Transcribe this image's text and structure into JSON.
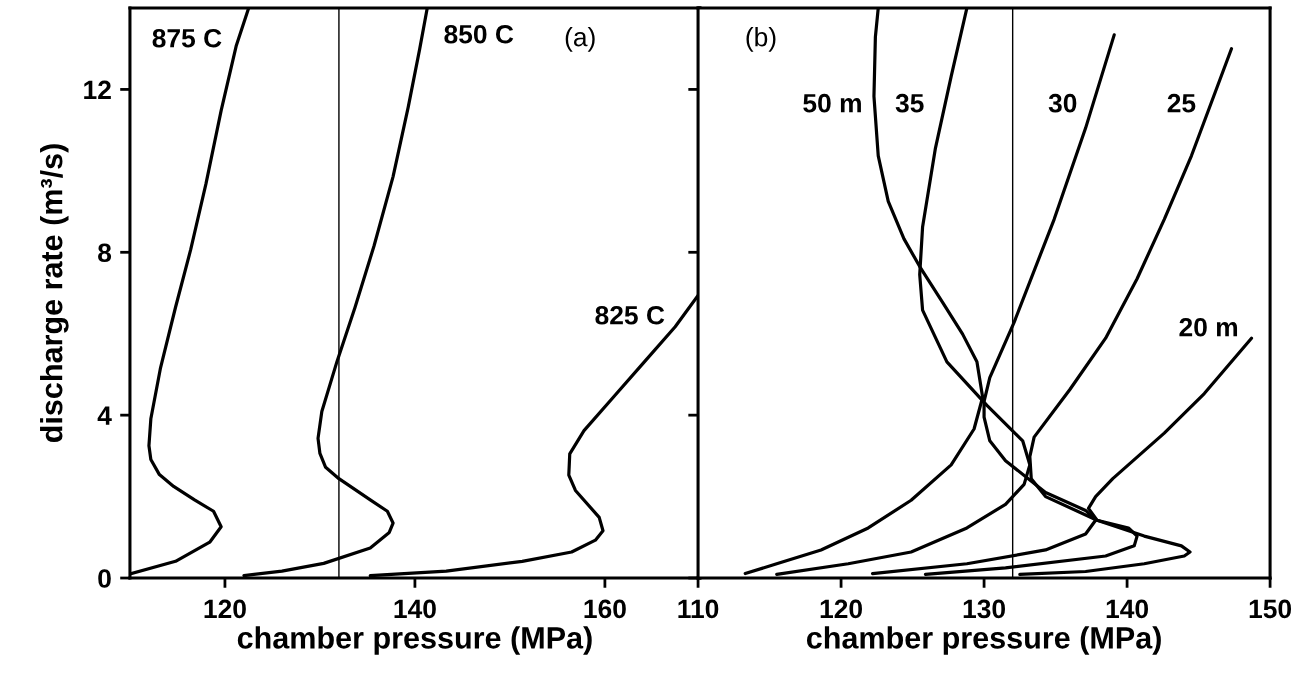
{
  "chart_data": [
    {
      "type": "line",
      "xlabel": "chamber pressure (MPa)",
      "ylabel": "discharge rate (m³/s)",
      "xlim": [
        110,
        170
      ],
      "xticks": [
        120,
        140,
        160
      ],
      "ylim": [
        0,
        14
      ],
      "yticks": [
        0,
        4,
        8,
        12
      ],
      "grid": false,
      "series": [
        {
          "name": "875 C",
          "color": "#000000",
          "x": [
            110.0,
            114.8,
            118.4,
            119.6,
            118.8,
            116.8,
            114.6,
            113.1,
            112.2,
            112.0,
            112.2,
            113.2,
            114.8,
            116.4,
            118.0,
            119.6,
            121.2,
            122.5
          ],
          "values": [
            0.1,
            0.41,
            0.88,
            1.26,
            1.64,
            1.92,
            2.25,
            2.54,
            2.91,
            3.25,
            3.91,
            5.14,
            6.65,
            8.07,
            9.68,
            11.48,
            13.08,
            14.0
          ]
        },
        {
          "name": "850 C",
          "color": "#000000",
          "x": [
            122.0,
            126.0,
            130.4,
            135.3,
            137.3,
            137.7,
            137.1,
            135.3,
            132.0,
            130.6,
            130.0,
            129.8,
            130.2,
            131.8,
            133.7,
            135.7,
            137.7,
            139.3,
            140.5,
            141.3
          ],
          "values": [
            0.06,
            0.17,
            0.36,
            0.74,
            1.12,
            1.35,
            1.64,
            1.92,
            2.44,
            2.72,
            3.06,
            3.43,
            4.09,
            5.32,
            6.65,
            8.16,
            9.86,
            11.57,
            12.99,
            14.0
          ]
        },
        {
          "name": "825 C",
          "color": "#000000",
          "x": [
            135.3,
            143.3,
            151.3,
            156.5,
            159.0,
            159.8,
            159.4,
            156.9,
            156.2,
            156.3,
            157.8,
            161.0,
            164.2,
            167.4,
            170.0
          ],
          "values": [
            0.06,
            0.17,
            0.41,
            0.64,
            0.93,
            1.16,
            1.49,
            2.15,
            2.53,
            3.05,
            3.62,
            4.47,
            5.32,
            6.17,
            7.0
          ]
        }
      ],
      "ref_lines": [
        {
          "axis": "x",
          "value": 132,
          "color": "#000000"
        }
      ],
      "annotations": [
        "(a)"
      ]
    },
    {
      "type": "line",
      "xlabel": "chamber pressure (MPa)",
      "xlim": [
        110,
        150
      ],
      "xticks": [
        110,
        120,
        130,
        140,
        150
      ],
      "ylim": [
        0,
        14
      ],
      "yticks": [
        0,
        4,
        8,
        12
      ],
      "tick_labels": "x",
      "grid": false,
      "series": [
        {
          "name": "50 m",
          "color": "#000000",
          "x": [
            113.3,
            115.5,
            118.6,
            121.9,
            124.9,
            127.7,
            129.3,
            129.9,
            129.5,
            128.5,
            127.1,
            125.5,
            124.4,
            123.3,
            122.6,
            122.3,
            122.4,
            122.6
          ],
          "values": [
            0.11,
            0.35,
            0.69,
            1.23,
            1.91,
            2.78,
            3.66,
            4.44,
            5.31,
            5.99,
            6.77,
            7.65,
            8.33,
            9.25,
            10.37,
            11.83,
            13.29,
            14.0
          ]
        },
        {
          "name": "35",
          "color": "#000000",
          "x": [
            115.5,
            120.5,
            124.9,
            128.8,
            131.5,
            132.8,
            133.2,
            132.7,
            130.2,
            127.4,
            125.7,
            125.5,
            125.7,
            126.6,
            127.7,
            128.8
          ],
          "values": [
            0.09,
            0.35,
            0.64,
            1.23,
            1.81,
            2.3,
            2.78,
            3.37,
            4.24,
            5.31,
            6.58,
            7.45,
            8.62,
            10.56,
            12.32,
            14.0
          ]
        },
        {
          "name": "30",
          "color": "#000000",
          "x": [
            122.2,
            128.8,
            134.3,
            137.1,
            137.8,
            137.1,
            134.3,
            131.5,
            130.4,
            130.0,
            130.0,
            130.4,
            132.1,
            134.9,
            137.1,
            139.1
          ],
          "values": [
            0.11,
            0.35,
            0.69,
            1.08,
            1.42,
            1.66,
            2.1,
            2.88,
            3.37,
            3.95,
            4.34,
            4.92,
            6.28,
            8.81,
            11.05,
            13.34
          ]
        },
        {
          "name": "25",
          "color": "#000000",
          "x": [
            125.9,
            131.5,
            138.5,
            140.5,
            140.7,
            140.1,
            137.9,
            134.3,
            133.3,
            133.2,
            133.5,
            136.0,
            138.5,
            140.7,
            142.6,
            144.5,
            147.3
          ],
          "values": [
            0.09,
            0.25,
            0.54,
            0.79,
            1.03,
            1.23,
            1.42,
            2.0,
            2.44,
            2.98,
            3.46,
            4.63,
            5.89,
            7.35,
            8.81,
            10.37,
            13.0
          ]
        },
        {
          "name": "20 m",
          "color": "#000000",
          "x": [
            132.5,
            137.1,
            141.2,
            144.0,
            144.4,
            143.8,
            141.2,
            137.9,
            137.3,
            137.8,
            139.0,
            142.6,
            145.4,
            148.7
          ],
          "values": [
            0.09,
            0.16,
            0.35,
            0.54,
            0.64,
            0.79,
            1.03,
            1.42,
            1.71,
            2.0,
            2.44,
            3.56,
            4.53,
            5.89
          ]
        }
      ],
      "ref_lines": [
        {
          "axis": "x",
          "value": 132,
          "color": "#000000"
        }
      ],
      "annotations": [
        "(b)"
      ]
    }
  ]
}
